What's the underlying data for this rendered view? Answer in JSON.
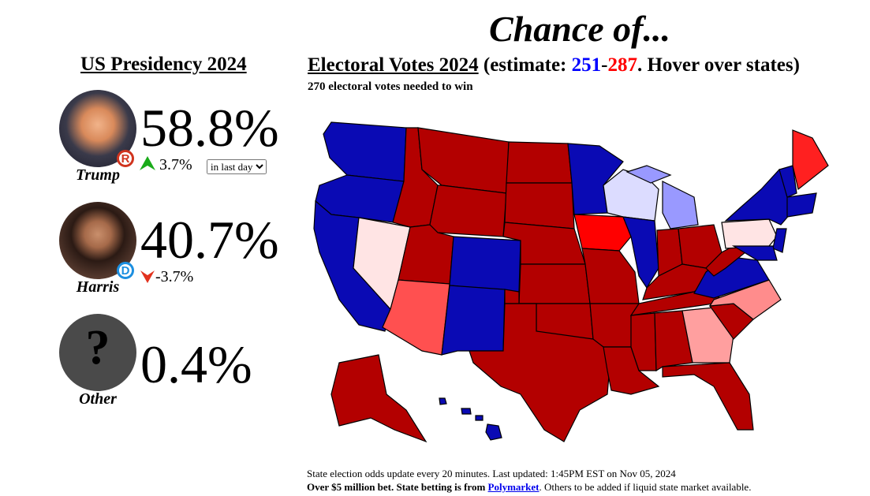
{
  "header": {
    "title": "Chance of..."
  },
  "left": {
    "title": "US Presidency 2024",
    "candidates": [
      {
        "name": "Trump",
        "badge": "R",
        "chance": "58.8%",
        "change": "3.7%",
        "period": "in last day"
      },
      {
        "name": "Harris",
        "badge": "D",
        "chance": "40.7%",
        "change": "-3.7%"
      },
      {
        "name": "Other",
        "badge": "?",
        "chance": "0.4%"
      }
    ]
  },
  "right": {
    "title": "Electoral Votes 2024",
    "estimate_open": "(estimate: ",
    "dem_votes": "251",
    "separator": "-",
    "rep_votes": "287",
    "estimate_close": ". Hover over states)",
    "subtitle": "270 electoral votes needed to win"
  },
  "footer": {
    "line1": "State election odds update every 20 minutes. Last updated: 1:45PM EST on Nov 05, 2024",
    "line2_bold": "Over $5 million bet. State betting is from ",
    "line2_link": "Polymarket",
    "line2_rest": ". Others to be added if liquid state market available."
  }
}
